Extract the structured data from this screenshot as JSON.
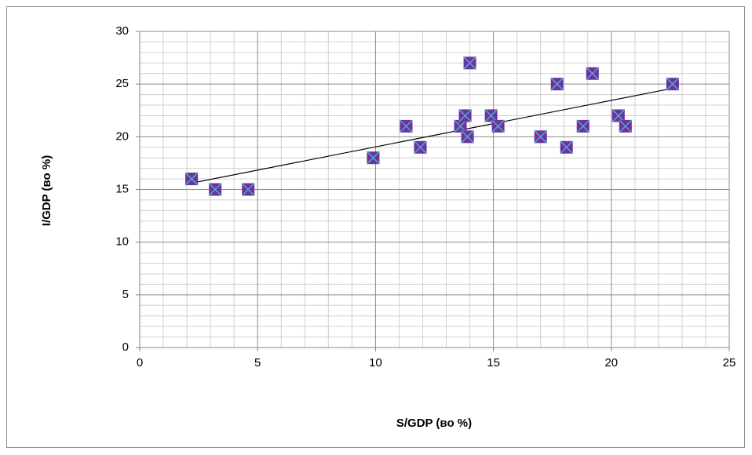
{
  "chart_data": {
    "type": "scatter",
    "x_label": "S/GDP (во %)",
    "y_label": "I/GDP (во %)",
    "x": [
      2.2,
      3.2,
      4.6,
      9.9,
      11.3,
      11.9,
      13.6,
      13.8,
      13.9,
      14.0,
      14.9,
      15.2,
      17.0,
      17.7,
      18.1,
      18.8,
      19.2,
      20.3,
      20.6,
      22.6
    ],
    "values": [
      16,
      15,
      15,
      18,
      21,
      19,
      21,
      22,
      20,
      27,
      22,
      21,
      20,
      25,
      19,
      21,
      26,
      22,
      21,
      25
    ],
    "color": "#7030a0",
    "marker_cross_color": "#4bacc6",
    "trendline": {
      "x": [
        2.2,
        22.6
      ],
      "y": [
        15.6,
        24.6
      ],
      "color": "#000000"
    },
    "xlim": [
      0,
      25
    ],
    "xticks": [
      0,
      5,
      10,
      15,
      20,
      25
    ],
    "ylim": [
      0,
      30
    ],
    "yticks": [
      0,
      5,
      10,
      15,
      20,
      25,
      30
    ],
    "grid": true,
    "minor_grid": true
  }
}
